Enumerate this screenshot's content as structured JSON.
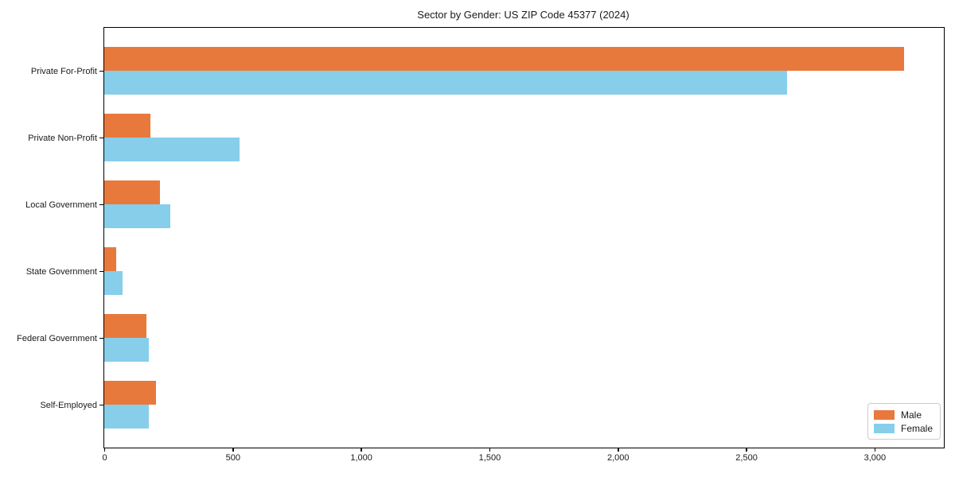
{
  "chart_data": {
    "type": "bar",
    "orientation": "horizontal",
    "title": "Sector by Gender: US ZIP Code 45377 (2024)",
    "categories": [
      "Private For-Profit",
      "Private Non-Profit",
      "Local Government",
      "State Government",
      "Federal Government",
      "Self-Employed"
    ],
    "series": [
      {
        "name": "Male",
        "color": "#E8793D",
        "values": [
          3115,
          180,
          218,
          46,
          164,
          200
        ]
      },
      {
        "name": "Female",
        "color": "#87CEEB",
        "values": [
          2660,
          528,
          258,
          70,
          174,
          174
        ]
      }
    ],
    "xlabel": "",
    "ylabel": "",
    "xlim": [
      0,
      3270
    ],
    "xticks": {
      "values": [
        0,
        500,
        1000,
        1500,
        2000,
        2500,
        3000
      ],
      "labels": [
        "0",
        "500",
        "1,000",
        "1,500",
        "2,000",
        "2,500",
        "3,000"
      ]
    },
    "grid": false,
    "legend": {
      "position": "lower right",
      "items": [
        "Male",
        "Female"
      ]
    }
  },
  "colors": {
    "background": "#ffffff",
    "frame": "#000000",
    "text": "#1a1a1a"
  }
}
